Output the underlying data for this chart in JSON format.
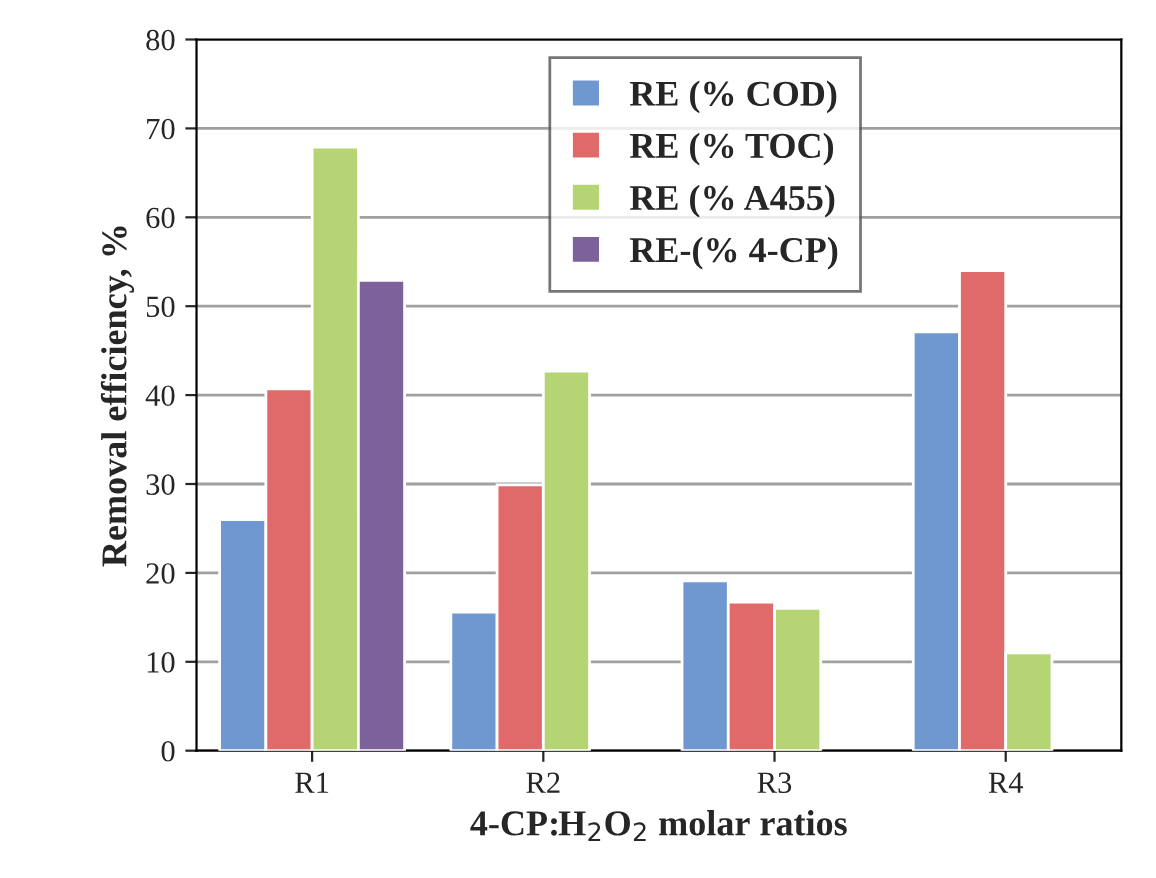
{
  "chart_data": {
    "type": "bar",
    "xlabel": "4-CP:H$_{2}$O$_{2}$ molar ratios",
    "ylabel": "Removal efficiency, %",
    "categories": [
      "R1",
      "R2",
      "R3",
      "R4"
    ],
    "series": [
      {
        "name": "RE (% COD)",
        "color": "#6f98d0",
        "values": [
          26.0,
          15.6,
          19.1,
          47.1
        ]
      },
      {
        "name": "RE (% TOC)",
        "color": "#e06a6a",
        "values": [
          40.7,
          29.9,
          16.7,
          54.0
        ]
      },
      {
        "name": "RE (% A455)",
        "color": "#b5d473",
        "values": [
          67.9,
          42.7,
          16.0,
          11.0
        ]
      },
      {
        "name": "RE-(% 4-CP)",
        "color": "#7d619b",
        "values": [
          52.9,
          null,
          null,
          null
        ]
      }
    ],
    "ylim": [
      0,
      80
    ],
    "yticks": [
      0,
      10,
      20,
      30,
      40,
      50,
      60,
      70,
      80
    ],
    "grid": "y",
    "legend": "top"
  }
}
